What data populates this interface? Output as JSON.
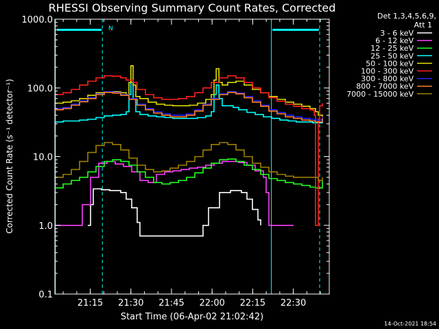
{
  "chart_data": {
    "type": "line",
    "title": "RHESSI Observing Summary Count Rates, Corrected",
    "xlabel": "Start Time (06-Apr-02 21:02:42)",
    "ylabel": "Corrected Count Rate (s⁻¹ detector⁻¹)",
    "yscale": "log",
    "ylim": [
      0.1,
      1000.0
    ],
    "xlim": [
      0,
      100
    ],
    "x_ticks": [
      "21:15",
      "21:30",
      "21:45",
      "22:00",
      "22:15",
      "22:30"
    ],
    "x_tick_positions": [
      12.9,
      27.7,
      42.5,
      57.3,
      72.1,
      86.9
    ],
    "y_ticks": [
      "0.1",
      "1.0",
      "10.0",
      "100.0",
      "1000.0"
    ],
    "y_tick_values": [
      0.1,
      1,
      10,
      100,
      1000
    ],
    "legend_header": [
      "Det 1,3,4,5,6,9,",
      "Att 1"
    ],
    "legend_position": "right",
    "timestamp": "14-Oct-2021 18:54",
    "annotation": "N",
    "night_markers": {
      "solid_x": [
        0.2,
        78.9
      ],
      "dashed_x": [
        17.3,
        96.5
      ],
      "bar_y": 700,
      "bar_ranges": [
        [
          0.8,
          17.0
        ],
        [
          79.3,
          96.2
        ]
      ]
    },
    "series": [
      {
        "name": "3 - 6 keV",
        "color": "#ffffff",
        "x": [
          12.0,
          13.0,
          14.0,
          17.0,
          20.0,
          24.0,
          26.0,
          28.0,
          30.0,
          31.0,
          52.0,
          54.0,
          56.0,
          60.0,
          64.0,
          68.0,
          70.0,
          72.0,
          74.0,
          75.0
        ],
        "y": [
          1.0,
          2.0,
          3.4,
          3.3,
          3.2,
          3.0,
          2.4,
          1.8,
          1.1,
          0.7,
          0.7,
          1.0,
          1.8,
          3.0,
          3.2,
          3.0,
          2.4,
          1.7,
          1.2,
          1.0
        ]
      },
      {
        "name": "6 - 12 keV",
        "color": "#ff40ff",
        "x": [
          0,
          8.0,
          9.0,
          10.0,
          13.0,
          16.0,
          19.0,
          22.0,
          25.0,
          28.0,
          31.0,
          34.0,
          37.0,
          40.0,
          43.0,
          46.0,
          49.0,
          52.0,
          55.0,
          58.0,
          61.0,
          64.0,
          67.0,
          70.0,
          73.0,
          76.0,
          77.0,
          78.0,
          79.0,
          80.0,
          84.0,
          86.0,
          87.0
        ],
        "y": [
          1.0,
          1.0,
          1.0,
          2.0,
          5.0,
          8.0,
          8.5,
          7.8,
          7.2,
          6.0,
          4.5,
          4.2,
          5.5,
          6.0,
          6.2,
          6.5,
          6.8,
          7.0,
          7.5,
          8.0,
          8.5,
          8.5,
          8.2,
          7.5,
          6.2,
          5.0,
          3.0,
          1.0,
          1.0,
          1.0,
          1.0,
          1.0,
          1.0
        ]
      },
      {
        "name": "12 - 25 keV",
        "color": "#20ff20",
        "x": [
          0,
          3.0,
          6.0,
          9.0,
          12.0,
          15.0,
          18.0,
          21.0,
          24.0,
          27.0,
          30.0,
          33.0,
          36.0,
          39.0,
          42.0,
          45.0,
          48.0,
          51.0,
          54.0,
          57.0,
          60.0,
          63.0,
          66.0,
          69.0,
          72.0,
          75.0,
          78.0,
          81.0,
          84.0,
          87.0,
          90.0,
          93.0,
          95.0,
          96.0,
          97.5
        ],
        "y": [
          3.5,
          4.0,
          4.5,
          5.0,
          6.0,
          7.2,
          8.5,
          9.0,
          8.5,
          7.5,
          6.0,
          5.0,
          4.2,
          4.0,
          4.2,
          4.5,
          5.0,
          5.8,
          6.8,
          8.0,
          9.0,
          9.2,
          8.5,
          7.5,
          6.5,
          5.5,
          4.8,
          4.5,
          4.2,
          4.0,
          3.8,
          3.6,
          3.5,
          3.5,
          4.5
        ]
      },
      {
        "name": "25 - 50 keV",
        "color": "#00ffff",
        "x": [
          0,
          3.0,
          6.0,
          9.0,
          12.0,
          15.0,
          18.0,
          21.0,
          24.0,
          26.0,
          27.0,
          27.7,
          28.5,
          29.5,
          31.0,
          34.0,
          37.0,
          40.0,
          43.0,
          46.0,
          49.0,
          52.0,
          55.0,
          57.0,
          58.0,
          58.8,
          59.8,
          61.0,
          63.0,
          65.0,
          67.0,
          70.0,
          73.0,
          76.0,
          79.0,
          82.0,
          85.0,
          88.0,
          91.0,
          94.0,
          95.0,
          96.0,
          97.5
        ],
        "y": [
          32,
          33,
          33,
          34,
          35,
          37,
          39,
          40,
          41,
          45,
          80,
          120,
          70,
          45,
          41,
          39,
          38,
          37,
          36,
          36,
          36,
          37,
          39,
          45,
          80,
          110,
          70,
          55,
          55,
          52,
          48,
          44,
          41,
          38,
          36,
          34,
          33,
          32,
          32,
          31,
          31,
          31,
          35
        ]
      },
      {
        "name": "50 - 100 keV",
        "color": "#e0e000",
        "x": [
          0,
          3.0,
          6.0,
          9.0,
          12.0,
          15.0,
          18.0,
          21.0,
          24.0,
          26.0,
          27.0,
          27.7,
          28.5,
          29.5,
          31.0,
          34.0,
          37.0,
          40.0,
          43.0,
          46.0,
          49.0,
          52.0,
          55.0,
          57.0,
          58.0,
          58.8,
          59.8,
          61.0,
          63.0,
          66.0,
          69.0,
          72.0,
          75.0,
          78.0,
          81.0,
          84.0,
          87.0,
          90.0,
          93.0,
          95.0,
          96.0,
          97.5
        ],
        "y": [
          60,
          62,
          65,
          70,
          78,
          85,
          88,
          88,
          85,
          80,
          120,
          210,
          110,
          75,
          70,
          62,
          58,
          56,
          55,
          55,
          56,
          60,
          68,
          80,
          130,
          190,
          120,
          110,
          120,
          125,
          110,
          95,
          85,
          75,
          68,
          62,
          58,
          54,
          50,
          45,
          40,
          38
        ]
      },
      {
        "name": "100 - 300 keV",
        "color": "#ff2020",
        "x": [
          0,
          3.0,
          6.0,
          9.0,
          12.0,
          15.0,
          18.0,
          21.0,
          24.0,
          26.0,
          27.5,
          28.5,
          30.0,
          33.0,
          36.0,
          39.0,
          42.0,
          45.0,
          48.0,
          51.0,
          54.0,
          57.0,
          60.0,
          63.0,
          66.0,
          69.0,
          72.0,
          75.0,
          78.0,
          81.0,
          84.0,
          87.0,
          90.0,
          93.0,
          94.0,
          94.5,
          95.0,
          95.6,
          96.0,
          96.5,
          97.5
        ],
        "y": [
          80,
          85,
          95,
          110,
          125,
          140,
          150,
          148,
          140,
          130,
          130,
          120,
          95,
          80,
          72,
          68,
          68,
          70,
          75,
          85,
          100,
          120,
          140,
          150,
          140,
          120,
          100,
          85,
          72,
          64,
          58,
          54,
          50,
          48,
          47,
          40,
          1.0,
          1.0,
          35,
          55,
          60
        ]
      },
      {
        "name": "300 - 800 keV",
        "color": "#2020ff",
        "x": [
          0,
          3.0,
          6.0,
          9.0,
          12.0,
          15.0,
          18.0,
          21.0,
          24.0,
          27.0,
          30.0,
          33.0,
          36.0,
          39.0,
          42.0,
          45.0,
          48.0,
          51.0,
          54.0,
          57.0,
          60.0,
          63.0,
          66.0,
          69.0,
          72.0,
          75.0,
          78.0,
          81.0,
          84.0,
          87.0,
          90.0,
          93.0,
          95.0,
          97.5
        ],
        "y": [
          50,
          52,
          58,
          65,
          72,
          82,
          88,
          86,
          80,
          70,
          58,
          50,
          45,
          42,
          40,
          40,
          42,
          48,
          58,
          70,
          82,
          88,
          84,
          75,
          65,
          56,
          48,
          44,
          40,
          38,
          36,
          35,
          34,
          37
        ]
      },
      {
        "name": "800 - 7000 keV",
        "color": "#ff8020",
        "x": [
          0,
          3.0,
          6.0,
          9.0,
          12.0,
          15.0,
          18.0,
          21.0,
          24.0,
          27.0,
          30.0,
          33.0,
          36.0,
          39.0,
          42.0,
          45.0,
          48.0,
          51.0,
          54.0,
          57.0,
          60.0,
          63.0,
          66.0,
          69.0,
          72.0,
          75.0,
          78.0,
          81.0,
          84.0,
          87.0,
          90.0,
          93.0,
          95.0,
          97.5
        ],
        "y": [
          48,
          50,
          56,
          63,
          70,
          80,
          86,
          84,
          78,
          68,
          56,
          48,
          43,
          40,
          38,
          38,
          40,
          46,
          56,
          68,
          80,
          86,
          82,
          72,
          62,
          54,
          46,
          42,
          38,
          36,
          34,
          33,
          32,
          36
        ]
      },
      {
        "name": "7000 - 15000 keV",
        "color": "#a08000",
        "x": [
          0,
          3.0,
          6.0,
          9.0,
          12.0,
          15.0,
          18.0,
          21.0,
          24.0,
          27.0,
          30.0,
          33.0,
          36.0,
          39.0,
          42.0,
          45.0,
          48.0,
          51.0,
          54.0,
          57.0,
          60.0,
          63.0,
          66.0,
          69.0,
          72.0,
          75.0,
          78.0,
          81.0,
          84.0,
          87.0,
          90.0,
          93.0,
          95.0,
          96.0,
          97.5
        ],
        "y": [
          5.0,
          5.5,
          6.5,
          8.5,
          11.5,
          14.5,
          16.0,
          15.0,
          12.5,
          9.5,
          7.5,
          6.5,
          6.0,
          6.2,
          6.8,
          7.5,
          8.5,
          10.0,
          12.5,
          15.0,
          16.0,
          15.0,
          12.5,
          10.0,
          8.0,
          7.0,
          6.0,
          5.5,
          5.2,
          5.0,
          5.0,
          5.0,
          5.0,
          4.5,
          5.0
        ]
      }
    ]
  }
}
